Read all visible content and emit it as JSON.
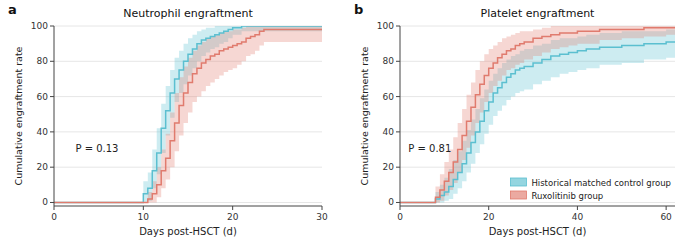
{
  "chart_data": [
    {
      "type": "step",
      "panel_label": "a",
      "title": "Neutrophil engraftment",
      "x_label": "Days post-HSCT (d)",
      "y_label": "Cumulative engraftment rate",
      "xlim": [
        0,
        30
      ],
      "ylim": [
        -2,
        100
      ],
      "xticks": [
        0,
        10,
        20,
        30
      ],
      "yticks": [
        0,
        20,
        40,
        60,
        80,
        100
      ],
      "annotation": "P = 0.13",
      "series": [
        {
          "color": "#5bbfd0",
          "x": [
            0,
            9.5,
            10,
            10.5,
            11,
            11.5,
            12,
            12.5,
            13,
            13.5,
            14,
            14.5,
            15,
            15.5,
            16,
            16.5,
            17,
            17.5,
            18,
            18.5,
            19,
            19.5,
            20,
            20.5,
            21,
            22,
            23,
            30
          ],
          "values": [
            0,
            0,
            5,
            8,
            18,
            28,
            42,
            52,
            62,
            70,
            75,
            80,
            84,
            87,
            90,
            92,
            93,
            94,
            95,
            96,
            97,
            98,
            99,
            99,
            100,
            100,
            100,
            100
          ],
          "lo": [
            0,
            0,
            0,
            1,
            8,
            16,
            28,
            38,
            48,
            57,
            62,
            67,
            72,
            76,
            80,
            83,
            85,
            87,
            88,
            90,
            91,
            93,
            95,
            95,
            97,
            97,
            97,
            97
          ],
          "hi": [
            0,
            0,
            12,
            17,
            30,
            42,
            56,
            66,
            75,
            82,
            86,
            90,
            93,
            95,
            97,
            98,
            99,
            99,
            100,
            100,
            100,
            100,
            100,
            100,
            100,
            100,
            100,
            100
          ]
        },
        {
          "color": "#e07b6e",
          "x": [
            0,
            10,
            10.5,
            11,
            11.5,
            12,
            12.5,
            13,
            13.5,
            14,
            14.5,
            15,
            15.5,
            16,
            16.5,
            17,
            17.5,
            18,
            18.5,
            19,
            19.5,
            20,
            20.5,
            21,
            21.5,
            22,
            22.5,
            23,
            23.5,
            30
          ],
          "values": [
            0,
            0,
            2,
            5,
            10,
            18,
            25,
            35,
            45,
            55,
            62,
            68,
            73,
            76,
            79,
            81,
            83,
            84,
            86,
            87,
            88,
            89,
            90,
            91,
            93,
            94,
            95,
            97,
            98,
            98
          ],
          "lo": [
            0,
            0,
            0,
            0,
            3,
            8,
            13,
            20,
            29,
            38,
            45,
            51,
            57,
            60,
            63,
            66,
            68,
            70,
            72,
            74,
            75,
            76,
            78,
            80,
            83,
            84,
            86,
            89,
            91,
            91
          ],
          "hi": [
            0,
            0,
            6,
            12,
            20,
            30,
            39,
            51,
            62,
            71,
            77,
            82,
            86,
            89,
            91,
            93,
            94,
            95,
            96,
            97,
            97,
            98,
            98,
            99,
            100,
            100,
            100,
            100,
            100,
            100
          ]
        }
      ]
    },
    {
      "type": "step",
      "panel_label": "b",
      "title": "Platelet engraftment",
      "x_label": "Days post-HSCT (d)",
      "y_label": "Cumulative engraftment rate",
      "xlim": [
        0,
        62
      ],
      "ylim": [
        -2,
        100
      ],
      "xticks": [
        0,
        20,
        40,
        60
      ],
      "yticks": [
        0,
        20,
        40,
        60,
        80,
        100
      ],
      "annotation": "P = 0.81",
      "legend": "lower-right",
      "series": [
        {
          "name": "Historical matched control group",
          "color": "#5bbfd0",
          "x": [
            0,
            7,
            8,
            9,
            10,
            11,
            12,
            13,
            14,
            15,
            16,
            17,
            18,
            19,
            20,
            21,
            22,
            23,
            24,
            25,
            26,
            27,
            28,
            30,
            32,
            34,
            36,
            38,
            40,
            42,
            45,
            50,
            55,
            60,
            62
          ],
          "values": [
            0,
            0,
            2,
            4,
            6,
            9,
            13,
            17,
            22,
            28,
            34,
            40,
            46,
            52,
            57,
            62,
            65,
            68,
            71,
            73,
            75,
            76,
            77,
            79,
            81,
            83,
            84,
            85,
            86,
            87,
            88,
            89,
            90,
            91,
            91
          ],
          "lo": [
            0,
            0,
            0,
            0,
            1,
            2,
            5,
            8,
            12,
            17,
            22,
            28,
            33,
            39,
            44,
            49,
            52,
            55,
            58,
            60,
            62,
            63,
            64,
            67,
            69,
            71,
            73,
            74,
            75,
            76,
            78,
            79,
            81,
            82,
            82
          ],
          "hi": [
            0,
            0,
            6,
            10,
            14,
            19,
            24,
            29,
            35,
            41,
            47,
            53,
            59,
            64,
            69,
            73,
            76,
            79,
            81,
            83,
            84,
            86,
            87,
            89,
            90,
            92,
            93,
            93,
            94,
            95,
            96,
            97,
            97,
            98,
            98
          ]
        },
        {
          "name": "Ruxolitinib group",
          "color": "#e07b6e",
          "x": [
            0,
            7,
            8,
            9,
            10,
            11,
            12,
            13,
            14,
            15,
            16,
            17,
            18,
            19,
            20,
            21,
            22,
            23,
            24,
            25,
            26,
            27,
            28,
            30,
            32,
            34,
            36,
            38,
            40,
            45,
            50,
            55,
            60,
            62
          ],
          "values": [
            0,
            0,
            3,
            7,
            12,
            17,
            23,
            30,
            38,
            46,
            54,
            61,
            67,
            72,
            76,
            79,
            82,
            84,
            86,
            87,
            89,
            90,
            91,
            93,
            94,
            95,
            96,
            96,
            97,
            98,
            98,
            99,
            99,
            99
          ],
          "lo": [
            0,
            0,
            0,
            1,
            4,
            7,
            11,
            17,
            24,
            31,
            38,
            45,
            51,
            57,
            62,
            66,
            69,
            72,
            75,
            76,
            78,
            79,
            81,
            83,
            85,
            87,
            88,
            89,
            90,
            92,
            93,
            94,
            95,
            95
          ],
          "hi": [
            0,
            0,
            9,
            16,
            23,
            30,
            37,
            45,
            53,
            61,
            68,
            75,
            80,
            84,
            87,
            89,
            91,
            93,
            94,
            95,
            96,
            97,
            97,
            98,
            99,
            100,
            100,
            100,
            100,
            100,
            100,
            100,
            100,
            100
          ]
        }
      ]
    }
  ]
}
